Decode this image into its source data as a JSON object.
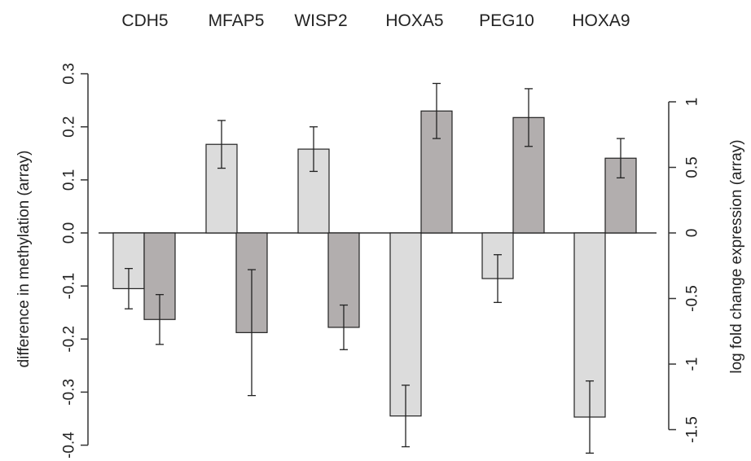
{
  "chart_data": {
    "type": "bar",
    "categories": [
      "CDH5",
      "MFAP5",
      "WISP2",
      "HOXA5",
      "PEG10",
      "HOXA9"
    ],
    "series": [
      {
        "axis": "left",
        "color": "#dcdcdc",
        "values": [
          -0.105,
          0.167,
          0.158,
          -0.345,
          -0.086,
          -0.347
        ],
        "errors": [
          0.038,
          0.045,
          0.042,
          0.058,
          0.045,
          0.068
        ]
      },
      {
        "axis": "right",
        "color": "#b2aeae",
        "values": [
          -0.66,
          -0.76,
          -0.72,
          0.93,
          0.88,
          0.57
        ],
        "errors": [
          0.19,
          0.48,
          0.17,
          0.21,
          0.22,
          0.15
        ]
      }
    ],
    "ylabel": "difference in methylation (array)",
    "ylabel_right": "log fold change expression (array)",
    "ylim": [
      -0.4,
      0.3
    ],
    "ylim_right": [
      -1.6,
      1.2
    ],
    "yticks": [
      -0.4,
      -0.3,
      -0.2,
      -0.1,
      0.0,
      0.1,
      0.2,
      0.3
    ],
    "ytick_labels": [
      "-0.4",
      "-0.3",
      "-0.2",
      "-0.1",
      "0.0",
      "0.1",
      "0.2",
      "0.3"
    ],
    "yticks_right": [
      -1.5,
      -1,
      -0.5,
      0,
      0.5,
      1
    ],
    "ytick_labels_right": [
      "-1.5",
      "-1",
      "-0.5",
      "0",
      "0.5",
      "1"
    ],
    "zero_line": true,
    "grid": false
  }
}
